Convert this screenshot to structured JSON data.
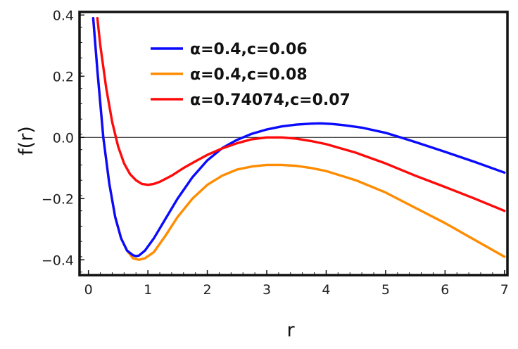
{
  "chart_data": {
    "type": "line",
    "title": "",
    "xlabel": "r",
    "ylabel": "f(r)",
    "xlim": [
      -0.15,
      7.05
    ],
    "ylim": [
      -0.45,
      0.41
    ],
    "x_ticks": [
      0,
      1,
      2,
      3,
      4,
      5,
      6,
      7
    ],
    "y_ticks": [
      -0.4,
      -0.2,
      0.0,
      0.2,
      0.4
    ],
    "x_tick_labels": [
      "0",
      "1",
      "2",
      "3",
      "4",
      "5",
      "6",
      "7"
    ],
    "y_tick_labels": [
      "−0.4",
      "−0.2",
      "0.0",
      "0.2",
      "0.4"
    ],
    "grid": false,
    "zero_line": true,
    "legend_position": "top-left",
    "series": [
      {
        "name": "α=0.4,c=0.06",
        "color": "#0a0aff",
        "x": [
          0.08,
          0.15,
          0.25,
          0.35,
          0.45,
          0.55,
          0.65,
          0.75,
          0.8,
          0.85,
          0.95,
          1.1,
          1.3,
          1.5,
          1.75,
          2.0,
          2.25,
          2.5,
          2.75,
          3.0,
          3.25,
          3.5,
          3.75,
          3.9,
          4.1,
          4.3,
          4.6,
          5.0,
          5.25,
          5.5,
          6.0,
          6.5,
          7.0
        ],
        "y": [
          0.39,
          0.22,
          0.0,
          -0.15,
          -0.26,
          -0.33,
          -0.37,
          -0.385,
          -0.388,
          -0.386,
          -0.37,
          -0.33,
          -0.265,
          -0.2,
          -0.13,
          -0.075,
          -0.035,
          -0.008,
          0.012,
          0.026,
          0.036,
          0.042,
          0.045,
          0.046,
          0.044,
          0.04,
          0.032,
          0.015,
          0.0,
          -0.015,
          -0.047,
          -0.08,
          -0.115
        ]
      },
      {
        "name": "α=0.4,c=0.08",
        "color": "#ff8c00",
        "x": [
          0.08,
          0.15,
          0.25,
          0.35,
          0.45,
          0.55,
          0.65,
          0.75,
          0.85,
          0.95,
          1.1,
          1.3,
          1.5,
          1.75,
          2.0,
          2.25,
          2.5,
          2.75,
          3.0,
          3.25,
          3.5,
          3.75,
          4.0,
          4.5,
          5.0,
          5.5,
          6.0,
          6.5,
          7.0
        ],
        "y": [
          0.39,
          0.22,
          0.0,
          -0.15,
          -0.26,
          -0.33,
          -0.37,
          -0.395,
          -0.4,
          -0.395,
          -0.375,
          -0.32,
          -0.26,
          -0.2,
          -0.155,
          -0.125,
          -0.105,
          -0.095,
          -0.09,
          -0.09,
          -0.093,
          -0.1,
          -0.11,
          -0.14,
          -0.18,
          -0.23,
          -0.28,
          -0.335,
          -0.39
        ]
      },
      {
        "name": "α=0.74074,c=0.07",
        "color": "#ff0a0a",
        "x": [
          0.15,
          0.2,
          0.3,
          0.4,
          0.5,
          0.6,
          0.7,
          0.8,
          0.9,
          1.0,
          1.1,
          1.2,
          1.4,
          1.6,
          1.8,
          2.0,
          2.25,
          2.5,
          2.75,
          3.0,
          3.25,
          3.5,
          3.75,
          4.0,
          4.5,
          5.0,
          5.5,
          6.0,
          6.5,
          7.0
        ],
        "y": [
          0.39,
          0.3,
          0.16,
          0.05,
          -0.03,
          -0.085,
          -0.12,
          -0.14,
          -0.152,
          -0.155,
          -0.152,
          -0.145,
          -0.125,
          -0.1,
          -0.078,
          -0.057,
          -0.036,
          -0.019,
          -0.006,
          0.0,
          0.0,
          -0.004,
          -0.012,
          -0.022,
          -0.05,
          -0.085,
          -0.125,
          -0.162,
          -0.2,
          -0.24
        ]
      }
    ]
  }
}
